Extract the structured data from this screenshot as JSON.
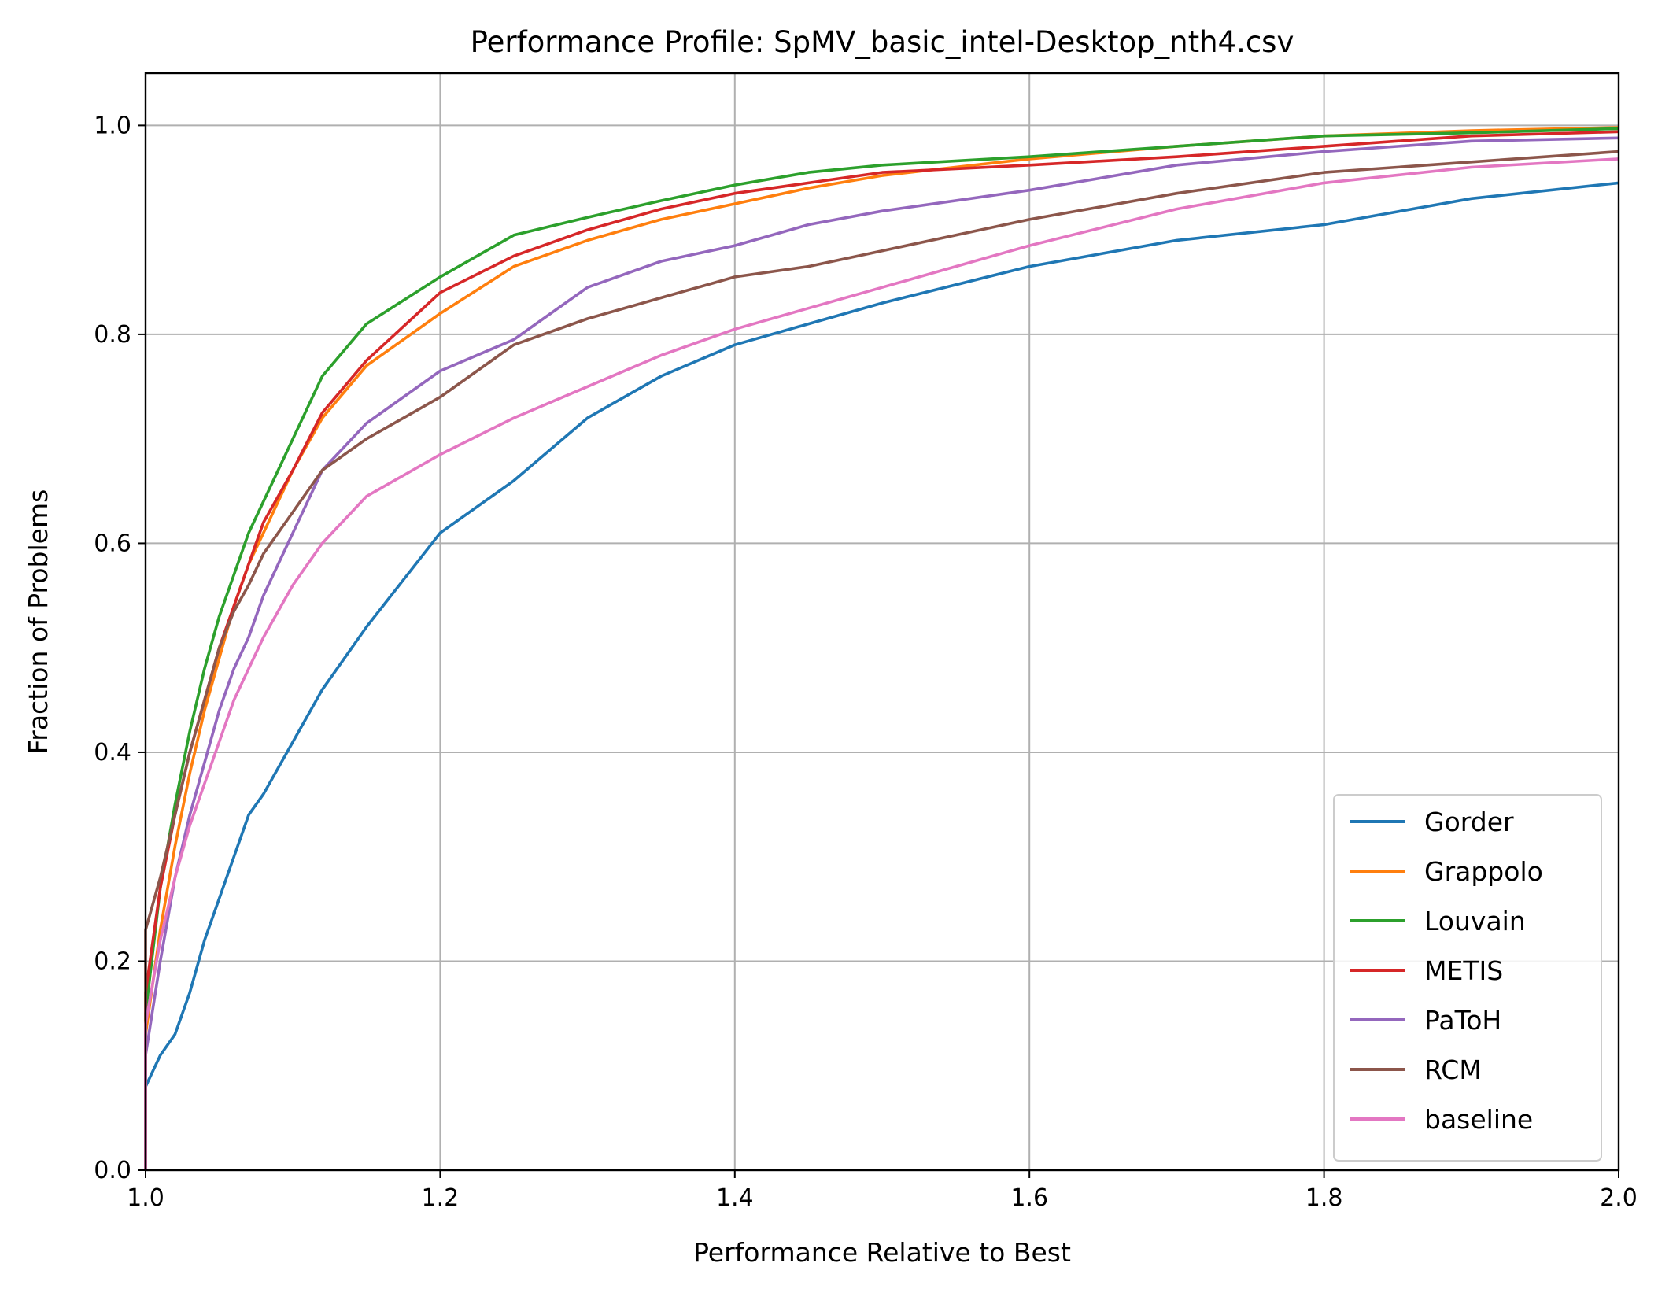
{
  "chart_data": {
    "type": "line",
    "title": "Performance Profile: SpMV_basic_intel-Desktop_nth4.csv",
    "xlabel": "Performance Relative to Best",
    "ylabel": "Fraction of Problems",
    "xlim": [
      1.0,
      2.0
    ],
    "ylim": [
      0.0,
      1.05
    ],
    "x_ticks": [
      1.0,
      1.2,
      1.4,
      1.6,
      1.8,
      2.0
    ],
    "x_tick_labels": [
      "1.0",
      "1.2",
      "1.4",
      "1.6",
      "1.8",
      "2.0"
    ],
    "y_ticks": [
      0.0,
      0.2,
      0.4,
      0.6,
      0.8,
      1.0
    ],
    "y_tick_labels": [
      "0.0",
      "0.2",
      "0.4",
      "0.6",
      "0.8",
      "1.0"
    ],
    "grid": true,
    "legend_position": "lower-right",
    "x": [
      1.0,
      1.01,
      1.02,
      1.03,
      1.04,
      1.05,
      1.06,
      1.07,
      1.08,
      1.1,
      1.12,
      1.15,
      1.2,
      1.25,
      1.3,
      1.35,
      1.4,
      1.45,
      1.5,
      1.6,
      1.7,
      1.8,
      1.9,
      2.0
    ],
    "series": [
      {
        "name": "Gorder",
        "color": "#1f77b4",
        "y0": 0.0,
        "values": [
          0.08,
          0.11,
          0.13,
          0.17,
          0.22,
          0.26,
          0.3,
          0.34,
          0.36,
          0.41,
          0.46,
          0.52,
          0.61,
          0.66,
          0.72,
          0.76,
          0.79,
          0.81,
          0.83,
          0.865,
          0.89,
          0.905,
          0.93,
          0.945
        ]
      },
      {
        "name": "Grappolo",
        "color": "#ff7f0e",
        "y0": 0.0,
        "values": [
          0.13,
          0.23,
          0.31,
          0.38,
          0.44,
          0.49,
          0.54,
          0.58,
          0.61,
          0.67,
          0.72,
          0.77,
          0.82,
          0.865,
          0.89,
          0.91,
          0.925,
          0.94,
          0.952,
          0.968,
          0.98,
          0.99,
          0.995,
          0.998
        ]
      },
      {
        "name": "Louvain",
        "color": "#2ca02c",
        "y0": 0.0,
        "values": [
          0.15,
          0.27,
          0.35,
          0.42,
          0.48,
          0.53,
          0.57,
          0.61,
          0.64,
          0.7,
          0.76,
          0.81,
          0.855,
          0.895,
          0.912,
          0.928,
          0.943,
          0.955,
          0.962,
          0.97,
          0.98,
          0.99,
          0.993,
          0.997
        ]
      },
      {
        "name": "METIS",
        "color": "#d62728",
        "y0": 0.0,
        "values": [
          0.17,
          0.27,
          0.34,
          0.4,
          0.45,
          0.5,
          0.54,
          0.58,
          0.62,
          0.67,
          0.725,
          0.775,
          0.84,
          0.875,
          0.9,
          0.92,
          0.935,
          0.945,
          0.955,
          0.962,
          0.97,
          0.98,
          0.99,
          0.994
        ]
      },
      {
        "name": "PaToH",
        "color": "#9467bd",
        "y0": 0.0,
        "values": [
          0.11,
          0.2,
          0.28,
          0.34,
          0.39,
          0.44,
          0.48,
          0.51,
          0.55,
          0.61,
          0.67,
          0.715,
          0.765,
          0.795,
          0.845,
          0.87,
          0.885,
          0.905,
          0.918,
          0.938,
          0.962,
          0.975,
          0.985,
          0.988
        ]
      },
      {
        "name": "RCM",
        "color": "#8c564b",
        "y0": 0.0,
        "values": [
          0.23,
          0.28,
          0.34,
          0.4,
          0.45,
          0.5,
          0.535,
          0.56,
          0.59,
          0.63,
          0.67,
          0.7,
          0.74,
          0.79,
          0.815,
          0.835,
          0.855,
          0.865,
          0.88,
          0.91,
          0.935,
          0.955,
          0.965,
          0.975
        ]
      },
      {
        "name": "baseline",
        "color": "#e377c2",
        "y0": 0.0,
        "values": [
          0.14,
          0.22,
          0.28,
          0.33,
          0.37,
          0.41,
          0.45,
          0.48,
          0.51,
          0.56,
          0.6,
          0.645,
          0.685,
          0.72,
          0.75,
          0.78,
          0.805,
          0.825,
          0.845,
          0.885,
          0.92,
          0.945,
          0.96,
          0.968
        ]
      }
    ]
  }
}
